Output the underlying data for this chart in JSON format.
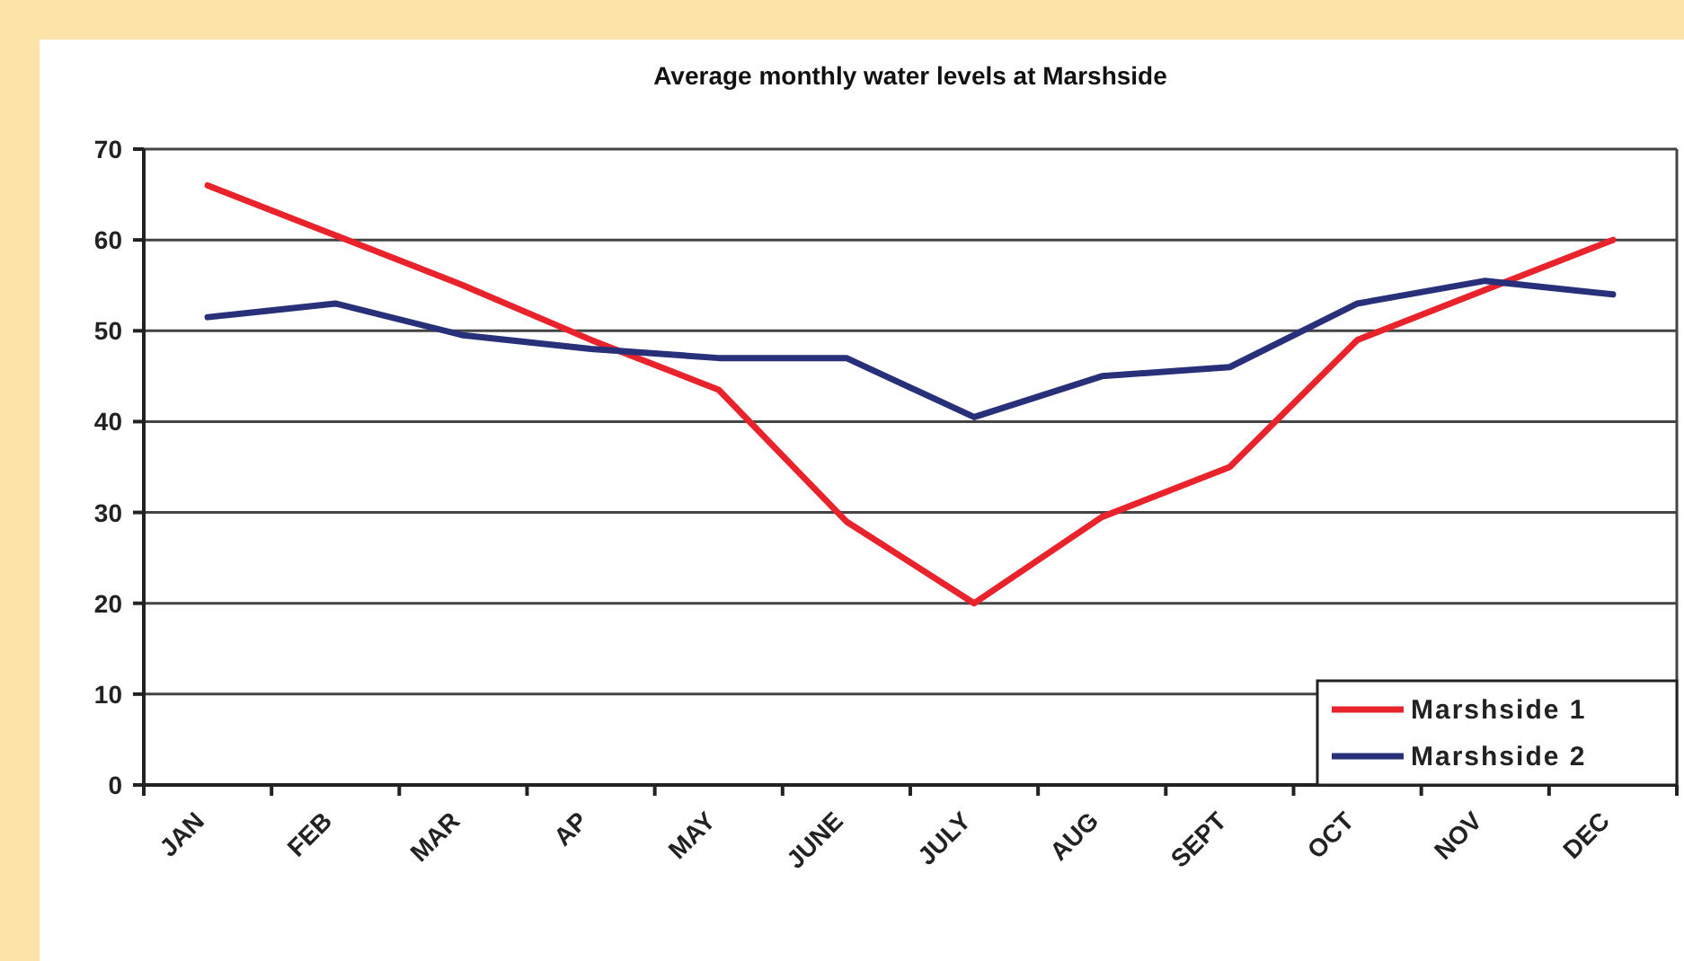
{
  "chart_data": {
    "type": "line",
    "title": "Average monthly water levels at Marshside",
    "categories": [
      "JAN",
      "FEB",
      "MAR",
      "AP",
      "MAY",
      "JUNE",
      "JULY",
      "AUG",
      "SEPT",
      "OCT",
      "NOV",
      "DEC"
    ],
    "series": [
      {
        "name": "Marshside 1",
        "color": "#e8232b",
        "values": [
          66,
          60.5,
          55,
          49,
          43.5,
          29,
          20,
          29.5,
          35,
          49,
          54.5,
          60
        ]
      },
      {
        "name": "Marshside 2",
        "color": "#28307a",
        "values": [
          51.5,
          53,
          49.5,
          48,
          47,
          47,
          40.5,
          45,
          46,
          53,
          55.5,
          54
        ]
      }
    ],
    "ylim": [
      0,
      70
    ],
    "yticks": [
      0,
      10,
      20,
      30,
      40,
      50,
      60,
      70
    ],
    "grid": "y",
    "legend": "bottom right",
    "marker": "none",
    "line_style": "solid"
  }
}
